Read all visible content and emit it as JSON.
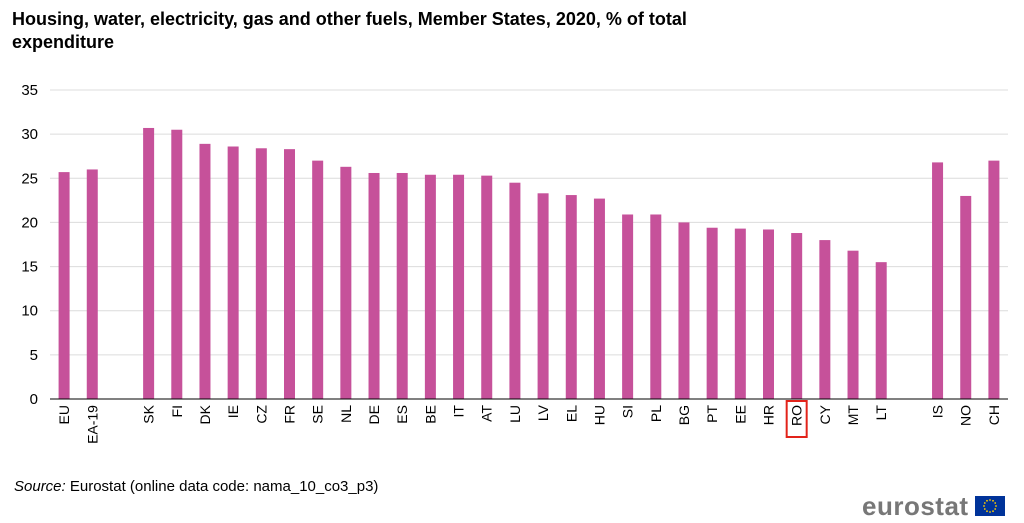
{
  "title": "Housing, water, electricity, gas and other fuels, Member States, 2020, % of total expenditure",
  "source": {
    "label": "Source:",
    "text": "Eurostat (online data code: nama_10_co3_p3)"
  },
  "logo": {
    "text": "eurostat"
  },
  "colors": {
    "bar": "#c6519a",
    "grid": "#dcdcdc",
    "highlight": "#e2231a",
    "axis": "#000000"
  },
  "chart_data": {
    "type": "bar",
    "categories": [
      "EU",
      "EA-19",
      "",
      "SK",
      "FI",
      "DK",
      "IE",
      "CZ",
      "FR",
      "SE",
      "NL",
      "DE",
      "ES",
      "BE",
      "IT",
      "AT",
      "LU",
      "LV",
      "EL",
      "HU",
      "SI",
      "PL",
      "BG",
      "PT",
      "EE",
      "HR",
      "RO",
      "CY",
      "MT",
      "LT",
      "",
      "IS",
      "NO",
      "CH"
    ],
    "values": [
      25.7,
      26.0,
      null,
      30.7,
      30.5,
      28.9,
      28.6,
      28.4,
      28.3,
      27.0,
      26.3,
      25.6,
      25.6,
      25.4,
      25.4,
      25.3,
      24.5,
      23.3,
      23.1,
      22.7,
      20.9,
      20.9,
      20.0,
      19.4,
      19.3,
      19.2,
      18.8,
      18.0,
      16.8,
      15.5,
      null,
      26.8,
      23.0,
      27.0
    ],
    "highlight": "RO",
    "ylim": [
      0,
      35
    ],
    "yticks": [
      0,
      5,
      10,
      15,
      20,
      25,
      30,
      35
    ],
    "grid": true,
    "title": "Housing, water, electricity, gas and other fuels, Member States, 2020, % of total expenditure",
    "xlabel": "",
    "ylabel": ""
  }
}
